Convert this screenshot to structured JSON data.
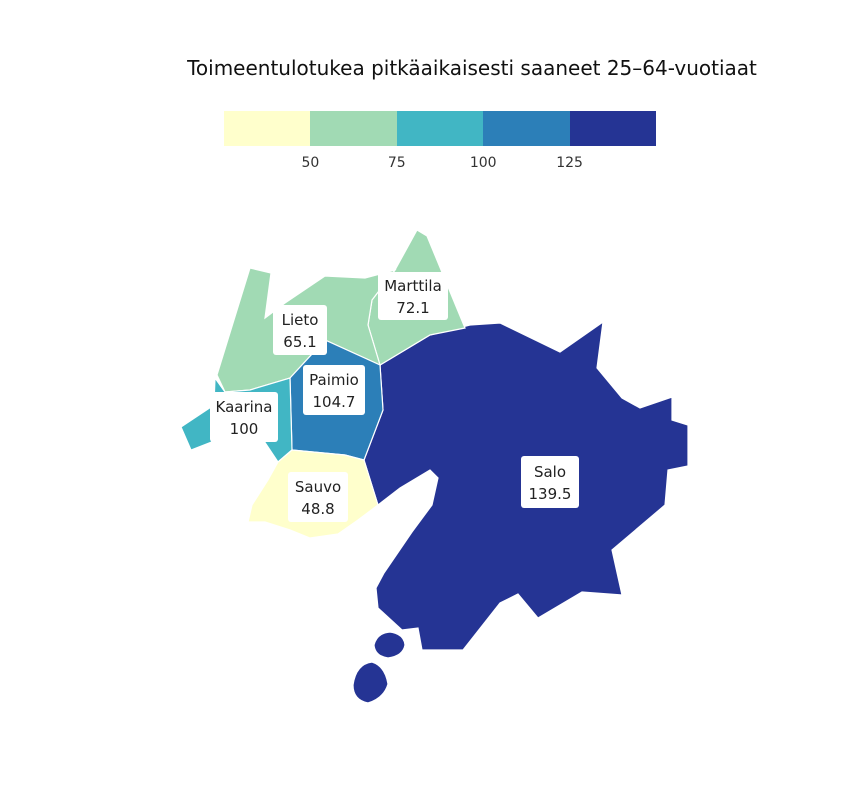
{
  "title": "Toimeentulotukea pitkäaikaisesti saaneet 25–64-vuotiaat",
  "legend": {
    "colors": [
      "#ffffcc",
      "#a1dab4",
      "#41b6c4",
      "#2c7fb8",
      "#253494"
    ],
    "ticks": [
      "50",
      "75",
      "100",
      "125"
    ]
  },
  "regions": [
    {
      "name": "Marttila",
      "value": "72.1",
      "color": "#a1dab4"
    },
    {
      "name": "Lieto",
      "value": "65.1",
      "color": "#a1dab4"
    },
    {
      "name": "Paimio",
      "value": "104.7",
      "color": "#2c7fb8"
    },
    {
      "name": "Kaarina",
      "value": "100",
      "color": "#41b6c4"
    },
    {
      "name": "Sauvo",
      "value": "48.8",
      "color": "#ffffcc"
    },
    {
      "name": "Salo",
      "value": "139.5",
      "color": "#253494"
    }
  ]
}
